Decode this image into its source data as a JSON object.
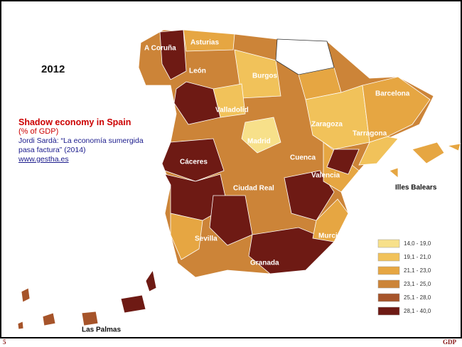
{
  "year": "2012",
  "info": {
    "title": "Shadow economy in Spain",
    "subtitle": "(% of GDP)",
    "source": "Jordi Sardà: “La economía sumergida pasa factura” (2014)",
    "link": "www.gestha.es"
  },
  "map": {
    "labels": [
      "A Coruña",
      "Asturias",
      "León",
      "Burgos",
      "Valladolid",
      "Zaragoza",
      "Barcelona",
      "Tarragona",
      "Madrid",
      "Cuenca",
      "Cáceres",
      "Valencia",
      "Ciudad Real",
      "Murcia",
      "Sevilla",
      "Granada",
      "Illes Balears",
      "Las Palmas"
    ]
  },
  "legend": [
    {
      "label": "14,0 - 19,0",
      "color": "#f7e08a"
    },
    {
      "label": "19,1 - 21,0",
      "color": "#f1c25a"
    },
    {
      "label": "21,1 - 23,0",
      "color": "#e6a642"
    },
    {
      "label": "23,1 - 25,0",
      "color": "#cc8438"
    },
    {
      "label": "25,1 - 28,0",
      "color": "#a6542a"
    },
    {
      "label": "28,1 - 40,0",
      "color": "#6e1a14"
    }
  ],
  "footer": {
    "page": "5",
    "tag": "GDP"
  }
}
